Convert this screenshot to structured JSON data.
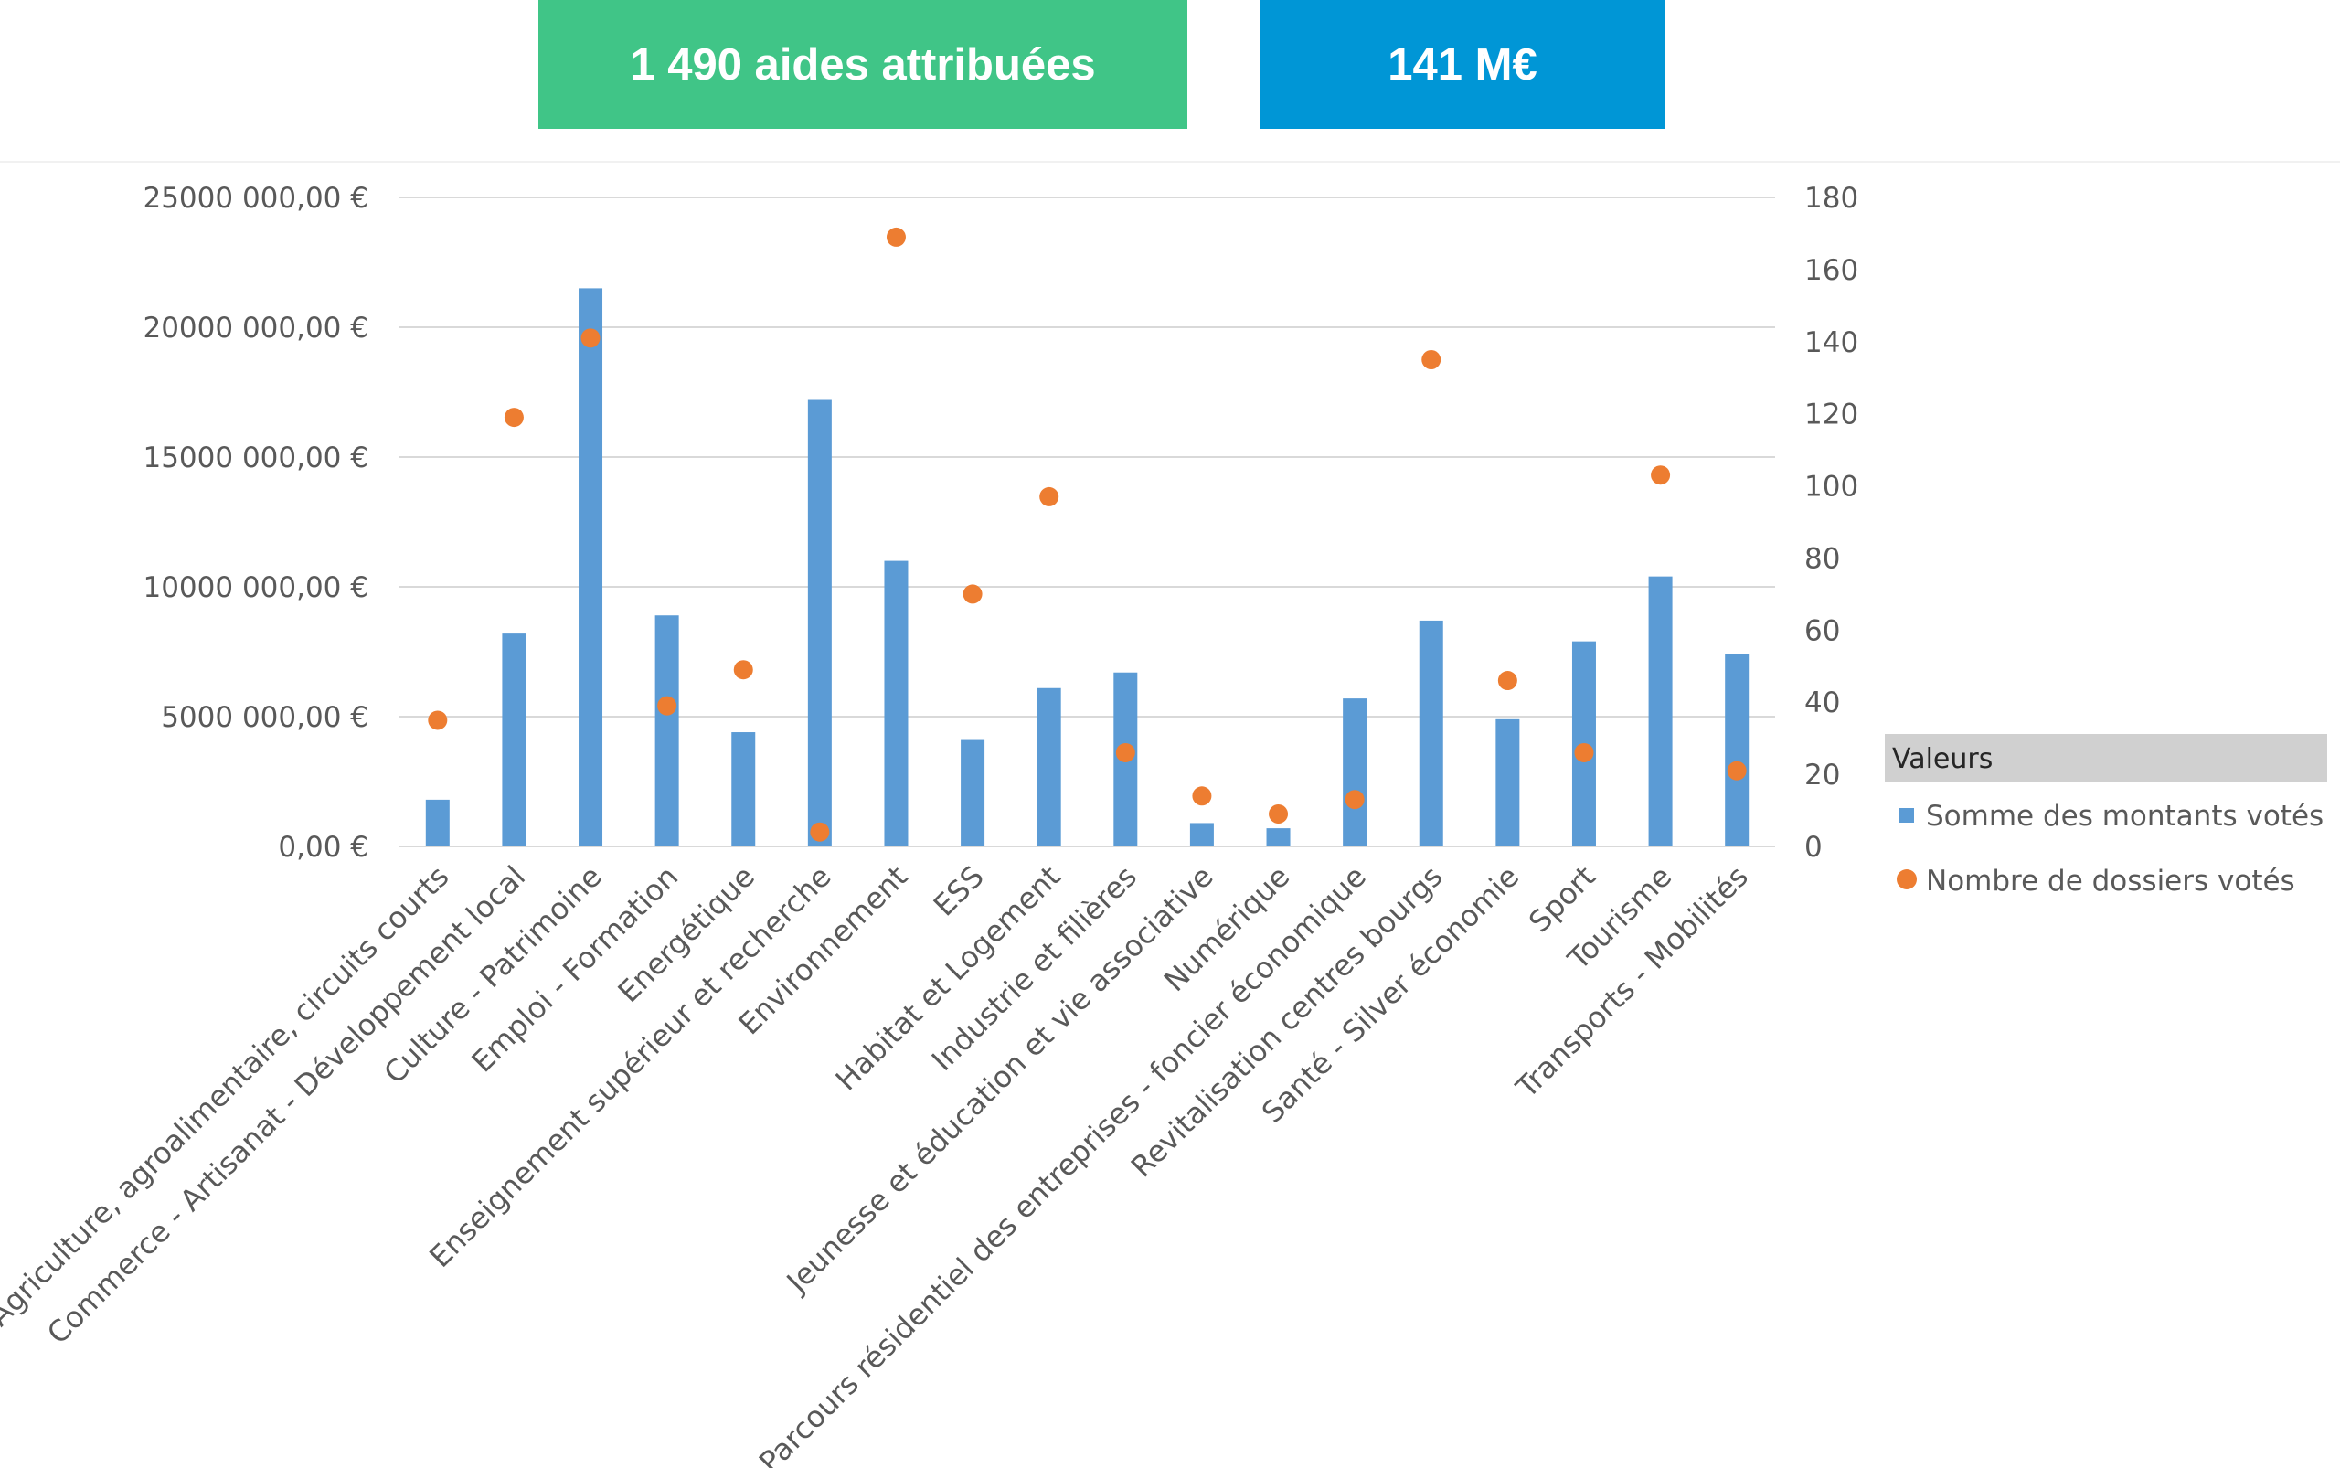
{
  "kpis": {
    "aides": "1 490 aides attribuées",
    "montant": "141 M€"
  },
  "colors": {
    "kpi_aides": "#40c587",
    "kpi_montant": "#0096d6",
    "bar": "#5b9bd5",
    "dot": "#ed7d31",
    "grid": "#d9d9d9",
    "legend_header": "#d0d0d0"
  },
  "chart_data": {
    "type": "bar",
    "title": "",
    "categories": [
      "Agriculture, agroalimentaire, circuits courts",
      "Commerce - Artisanat - Développement local",
      "Culture - Patrimoine",
      "Emploi - Formation",
      "Energétique",
      "Enseignement supérieur et recherche",
      "Environnement",
      "ESS",
      "Habitat et Logement",
      "Industrie et filières",
      "Jeunesse et éducation et vie associative",
      "Numérique",
      "Parcours résidentiel des entreprises - foncier économique",
      "Revitalisation centres bourgs",
      "Santé - Silver économie",
      "Sport",
      "Tourisme",
      "Transports - Mobilités"
    ],
    "series": [
      {
        "name": "Somme des montants votés",
        "type": "bar",
        "axis": "left",
        "values": [
          1800000,
          8200000,
          21500000,
          8900000,
          4400000,
          17200000,
          11000000,
          4100000,
          6100000,
          6700000,
          900000,
          700000,
          5700000,
          8700000,
          4900000,
          7900000,
          10400000,
          7400000
        ]
      },
      {
        "name": "Nombre de dossiers votés",
        "type": "scatter",
        "axis": "right",
        "values": [
          35,
          119,
          141,
          39,
          49,
          4,
          169,
          70,
          97,
          26,
          14,
          9,
          13,
          135,
          46,
          26,
          103,
          21
        ]
      }
    ],
    "y_left": {
      "min": 0,
      "max": 25000000,
      "ticks": [
        "0,00 €",
        "5000 000,00 €",
        "10000 000,00 €",
        "15000 000,00 €",
        "20000 000,00 €",
        "25000 000,00 €"
      ]
    },
    "y_right": {
      "min": 0,
      "max": 180,
      "ticks": [
        "0",
        "20",
        "40",
        "60",
        "80",
        "100",
        "120",
        "140",
        "160",
        "180"
      ]
    },
    "grid": true,
    "legend": {
      "title": "Valeurs",
      "placement": "right"
    }
  }
}
